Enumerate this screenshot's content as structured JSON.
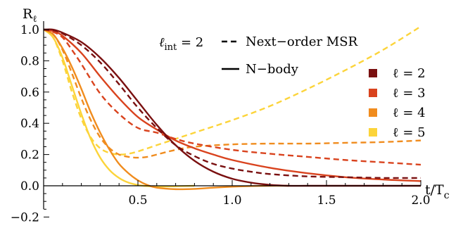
{
  "chart_data": {
    "type": "line",
    "xlabel": "t/T",
    "xlabel_sub": "c",
    "ylabel": "R",
    "ylabel_sub": "ℓ",
    "xlim": [
      0,
      2.0
    ],
    "ylim": [
      -0.2,
      1.05
    ],
    "xticks": [
      0.5,
      1.0,
      1.5,
      2.0
    ],
    "xtick_labels": [
      "0.5",
      "1.0",
      "1.5",
      "2.0"
    ],
    "yticks": [
      -0.2,
      0.0,
      0.2,
      0.4,
      0.6,
      0.8,
      1.0
    ],
    "ytick_labels": [
      "−0.2",
      "0.0",
      "0.2",
      "0.4",
      "0.6",
      "0.8",
      "1.0"
    ],
    "annotation": {
      "lhs": "ℓ",
      "sub": "int",
      "rhs": " = 2"
    },
    "style_legend": [
      {
        "style": "dashed",
        "label": "Next−order MSR"
      },
      {
        "style": "solid",
        "label": "N−body"
      }
    ],
    "legend_position": "right",
    "series": [
      {
        "name": "ℓ = 2",
        "color": "#7a1010",
        "nbody": {
          "x": [
            0,
            0.05,
            0.1,
            0.2,
            0.3,
            0.4,
            0.5,
            0.6,
            0.7,
            0.8,
            0.9,
            1.0,
            1.1,
            1.2,
            1.3,
            1.4,
            1.6,
            1.8,
            2.0
          ],
          "y": [
            1.0,
            1.0,
            0.98,
            0.92,
            0.82,
            0.69,
            0.54,
            0.39,
            0.26,
            0.16,
            0.09,
            0.045,
            0.02,
            0.006,
            0.0,
            0.0,
            0.0,
            0.0,
            0.0
          ]
        },
        "msr": {
          "x": [
            0,
            0.05,
            0.1,
            0.2,
            0.3,
            0.4,
            0.5,
            0.6,
            0.7,
            0.8,
            0.9,
            1.0,
            1.1,
            1.2,
            1.4,
            1.6,
            1.8,
            2.0
          ],
          "y": [
            1.0,
            0.995,
            0.975,
            0.9,
            0.79,
            0.65,
            0.5,
            0.37,
            0.26,
            0.19,
            0.14,
            0.11,
            0.09,
            0.075,
            0.06,
            0.055,
            0.05,
            0.05
          ]
        }
      },
      {
        "name": "ℓ = 3",
        "color": "#d9431e",
        "nbody": {
          "x": [
            0,
            0.05,
            0.1,
            0.2,
            0.3,
            0.4,
            0.5,
            0.6,
            0.7,
            0.8,
            0.9,
            1.0,
            1.2,
            1.4,
            1.6,
            1.8,
            2.0
          ],
          "y": [
            1.0,
            0.99,
            0.96,
            0.85,
            0.7,
            0.56,
            0.44,
            0.36,
            0.29,
            0.24,
            0.2,
            0.165,
            0.115,
            0.08,
            0.055,
            0.04,
            0.03
          ]
        },
        "msr": {
          "x": [
            0,
            0.05,
            0.1,
            0.15,
            0.2,
            0.3,
            0.4,
            0.5,
            0.6,
            0.7,
            0.8,
            1.0,
            1.2,
            1.4,
            1.6,
            1.8,
            2.0
          ],
          "y": [
            1.0,
            0.985,
            0.95,
            0.87,
            0.78,
            0.59,
            0.46,
            0.37,
            0.34,
            0.3,
            0.27,
            0.23,
            0.205,
            0.185,
            0.165,
            0.15,
            0.135
          ]
        }
      },
      {
        "name": "ℓ = 4",
        "color": "#f08c1e",
        "nbody": {
          "x": [
            0,
            0.05,
            0.1,
            0.15,
            0.2,
            0.25,
            0.3,
            0.35,
            0.4,
            0.45,
            0.5,
            0.55,
            0.6,
            0.7,
            0.8,
            0.9,
            1.0,
            1.1,
            1.2,
            1.3
          ],
          "y": [
            1.0,
            0.97,
            0.88,
            0.76,
            0.62,
            0.47,
            0.34,
            0.23,
            0.14,
            0.08,
            0.035,
            0.005,
            -0.012,
            -0.022,
            -0.02,
            -0.012,
            -0.006,
            -0.002,
            0.0,
            0.0
          ]
        },
        "msr": {
          "x": [
            0,
            0.05,
            0.1,
            0.15,
            0.2,
            0.25,
            0.3,
            0.35,
            0.4,
            0.45,
            0.5,
            0.55,
            0.6,
            0.7,
            0.8,
            1.0,
            1.2,
            1.4,
            1.6,
            1.8,
            2.0
          ],
          "y": [
            1.0,
            0.97,
            0.87,
            0.72,
            0.56,
            0.42,
            0.31,
            0.24,
            0.2,
            0.185,
            0.18,
            0.185,
            0.2,
            0.23,
            0.25,
            0.265,
            0.27,
            0.27,
            0.275,
            0.28,
            0.29
          ]
        }
      },
      {
        "name": "ℓ = 5",
        "color": "#fcd43a",
        "nbody": {
          "x": [
            0,
            0.05,
            0.1,
            0.15,
            0.2,
            0.25,
            0.3,
            0.35,
            0.4,
            0.45,
            0.5,
            0.55,
            0.6,
            0.7,
            0.8
          ],
          "y": [
            1.0,
            0.95,
            0.82,
            0.64,
            0.46,
            0.3,
            0.18,
            0.1,
            0.05,
            0.02,
            0.005,
            -0.002,
            -0.005,
            -0.003,
            0.0
          ]
        },
        "msr": {
          "x": [
            0,
            0.05,
            0.1,
            0.15,
            0.2,
            0.25,
            0.3,
            0.35,
            0.4,
            0.45,
            0.5,
            0.6,
            0.7,
            0.8,
            1.0,
            1.2,
            1.4,
            1.6,
            1.8,
            2.0
          ],
          "y": [
            1.0,
            0.95,
            0.8,
            0.6,
            0.43,
            0.31,
            0.24,
            0.21,
            0.2,
            0.205,
            0.22,
            0.26,
            0.3,
            0.34,
            0.42,
            0.51,
            0.62,
            0.74,
            0.87,
            1.02
          ]
        }
      }
    ]
  }
}
